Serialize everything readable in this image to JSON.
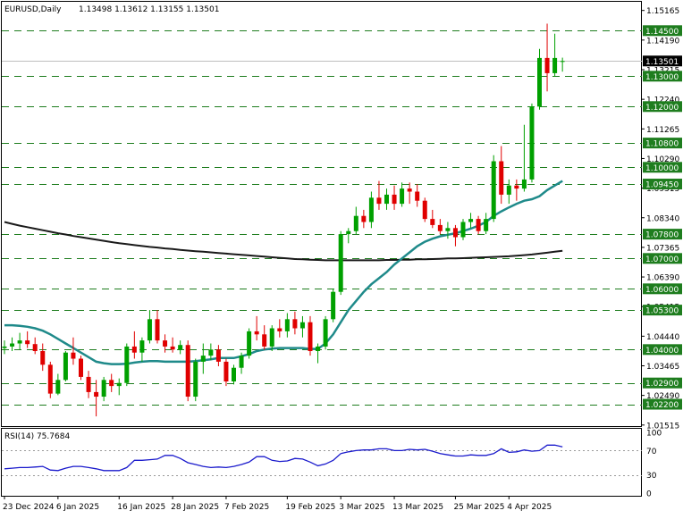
{
  "chart_data": {
    "type": "candlestick",
    "symbol_header": "EURUSD,Daily",
    "ohlc_header": "1.13498 1.13612 1.13155 1.13501",
    "y_range": [
      1.0148,
      1.1545
    ],
    "price_ticks": [
      "1.15165",
      "1.14190",
      "1.13215",
      "1.12240",
      "1.11265",
      "1.10290",
      "1.09315",
      "1.08340",
      "1.07365",
      "1.06390",
      "1.05415",
      "1.04440",
      "1.03465",
      "1.02490",
      "1.01515"
    ],
    "levels": [
      {
        "label": "1.14500",
        "value": 1.145
      },
      {
        "label": "1.13000",
        "value": 1.13
      },
      {
        "label": "1.12000",
        "value": 1.12
      },
      {
        "label": "1.10800",
        "value": 1.108
      },
      {
        "label": "1.10000",
        "value": 1.1
      },
      {
        "label": "1.09450",
        "value": 1.0945
      },
      {
        "label": "1.07800",
        "value": 1.078
      },
      {
        "label": "1.07000",
        "value": 1.07
      },
      {
        "label": "1.06000",
        "value": 1.06
      },
      {
        "label": "1.05300",
        "value": 1.053
      },
      {
        "label": "1.04000",
        "value": 1.04
      },
      {
        "label": "1.02900",
        "value": 1.029
      },
      {
        "label": "1.02200",
        "value": 1.022
      }
    ],
    "current_price": {
      "label": "1.13501",
      "value": 1.13501
    },
    "x_labels": [
      "23 Dec 2024",
      "6 Jan 2025",
      "16 Jan 2025",
      "28 Jan 2025",
      "7 Feb 2025",
      "19 Feb 2025",
      "3 Mar 2025",
      "13 Mar 2025",
      "25 Mar 2025",
      "4 Apr 2025"
    ],
    "candles": [
      [
        1.0405,
        1.043,
        1.0385,
        1.041
      ],
      [
        1.041,
        1.044,
        1.0395,
        1.042
      ],
      [
        1.042,
        1.0455,
        1.04,
        1.043
      ],
      [
        1.043,
        1.046,
        1.0405,
        1.0418
      ],
      [
        1.0418,
        1.044,
        1.0385,
        1.0395
      ],
      [
        1.0395,
        1.042,
        1.033,
        1.035
      ],
      [
        1.035,
        1.036,
        1.024,
        1.0255
      ],
      [
        1.0255,
        1.032,
        1.025,
        1.03
      ],
      [
        1.03,
        1.0395,
        1.0295,
        1.039
      ],
      [
        1.039,
        1.044,
        1.035,
        1.037
      ],
      [
        1.037,
        1.038,
        1.03,
        1.031
      ],
      [
        1.031,
        1.033,
        1.024,
        1.026
      ],
      [
        1.026,
        1.03,
        1.018,
        1.0245
      ],
      [
        1.0245,
        1.031,
        1.023,
        1.03
      ],
      [
        1.03,
        1.032,
        1.026,
        1.028
      ],
      [
        1.028,
        1.0305,
        1.025,
        1.029
      ],
      [
        1.029,
        1.042,
        1.028,
        1.041
      ],
      [
        1.041,
        1.046,
        1.037,
        1.039
      ],
      [
        1.039,
        1.044,
        1.036,
        1.043
      ],
      [
        1.043,
        1.053,
        1.042,
        1.05
      ],
      [
        1.05,
        1.053,
        1.042,
        1.043
      ],
      [
        1.043,
        1.045,
        1.039,
        1.041
      ],
      [
        1.041,
        1.044,
        1.039,
        1.04
      ],
      [
        1.04,
        1.043,
        1.0385,
        1.0415
      ],
      [
        1.0415,
        1.043,
        1.023,
        1.0245
      ],
      [
        1.0245,
        1.037,
        1.023,
        1.036
      ],
      [
        1.036,
        1.042,
        1.032,
        1.038
      ],
      [
        1.038,
        1.042,
        1.0365,
        1.04
      ],
      [
        1.04,
        1.0415,
        1.0345,
        1.036
      ],
      [
        1.036,
        1.037,
        1.028,
        1.0295
      ],
      [
        1.0295,
        1.035,
        1.0285,
        1.034
      ],
      [
        1.034,
        1.039,
        1.032,
        1.038
      ],
      [
        1.038,
        1.047,
        1.037,
        1.046
      ],
      [
        1.046,
        1.051,
        1.043,
        1.045
      ],
      [
        1.045,
        1.048,
        1.04,
        1.041
      ],
      [
        1.041,
        1.048,
        1.0395,
        1.047
      ],
      [
        1.047,
        1.05,
        1.044,
        1.046
      ],
      [
        1.046,
        1.052,
        1.044,
        1.05
      ],
      [
        1.05,
        1.0525,
        1.045,
        1.047
      ],
      [
        1.047,
        1.051,
        1.044,
        1.049
      ],
      [
        1.049,
        1.051,
        1.038,
        1.0395
      ],
      [
        1.0395,
        1.042,
        1.0355,
        1.041
      ],
      [
        1.041,
        1.051,
        1.04,
        1.05
      ],
      [
        1.05,
        1.06,
        1.049,
        1.059
      ],
      [
        1.059,
        1.079,
        1.058,
        1.078
      ],
      [
        1.078,
        1.08,
        1.075,
        1.079
      ],
      [
        1.079,
        1.087,
        1.078,
        1.084
      ],
      [
        1.084,
        1.086,
        1.08,
        1.082
      ],
      [
        1.082,
        1.092,
        1.08,
        1.09
      ],
      [
        1.09,
        1.0955,
        1.086,
        1.088
      ],
      [
        1.088,
        1.093,
        1.086,
        1.091
      ],
      [
        1.091,
        1.094,
        1.086,
        1.088
      ],
      [
        1.088,
        1.095,
        1.087,
        1.093
      ],
      [
        1.093,
        1.095,
        1.088,
        1.092
      ],
      [
        1.092,
        1.0945,
        1.087,
        1.089
      ],
      [
        1.089,
        1.09,
        1.082,
        1.083
      ],
      [
        1.083,
        1.086,
        1.08,
        1.081
      ],
      [
        1.081,
        1.083,
        1.078,
        1.079
      ],
      [
        1.079,
        1.082,
        1.0765,
        1.08
      ],
      [
        1.08,
        1.081,
        1.074,
        1.077
      ],
      [
        1.077,
        1.083,
        1.076,
        1.082
      ],
      [
        1.082,
        1.085,
        1.08,
        1.083
      ],
      [
        1.083,
        1.084,
        1.078,
        1.079
      ],
      [
        1.079,
        1.085,
        1.078,
        1.083
      ],
      [
        1.083,
        1.104,
        1.082,
        1.102
      ],
      [
        1.102,
        1.107,
        1.088,
        1.091
      ],
      [
        1.091,
        1.096,
        1.088,
        1.094
      ],
      [
        1.094,
        1.096,
        1.089,
        1.093
      ],
      [
        1.093,
        1.114,
        1.092,
        1.096
      ],
      [
        1.096,
        1.121,
        1.095,
        1.12
      ],
      [
        1.12,
        1.139,
        1.119,
        1.136
      ],
      [
        1.136,
        1.1473,
        1.125,
        1.131
      ],
      [
        1.131,
        1.144,
        1.13,
        1.136
      ],
      [
        1.135,
        1.1361,
        1.1315,
        1.135
      ]
    ],
    "ma_fast": [
      1.048,
      1.048,
      1.0478,
      1.0475,
      1.047,
      1.0462,
      1.045,
      1.0435,
      1.042,
      1.0405,
      1.039,
      1.0375,
      1.036,
      1.0355,
      1.0352,
      1.0352,
      1.0353,
      1.0357,
      1.036,
      1.0362,
      1.0362,
      1.036,
      1.036,
      1.036,
      1.036,
      1.0362,
      1.0365,
      1.0368,
      1.0372,
      1.0372,
      1.0372,
      1.0378,
      1.0385,
      1.0395,
      1.04,
      1.0403,
      1.0405,
      1.0405,
      1.0405,
      1.0405,
      1.0402,
      1.0402,
      1.042,
      1.045,
      1.049,
      1.053,
      1.056,
      1.059,
      1.0615,
      1.0635,
      1.0655,
      1.068,
      1.07,
      1.072,
      1.074,
      1.0755,
      1.0765,
      1.0773,
      1.0778,
      1.0783,
      1.079,
      1.0798,
      1.0808,
      1.082,
      1.084,
      1.0855,
      1.0868,
      1.088,
      1.089,
      1.0895,
      1.0905,
      1.0925,
      1.094,
      1.0955
    ],
    "ma_slow": [
      1.082,
      1.0814,
      1.0808,
      1.0803,
      1.0798,
      1.0793,
      1.0788,
      1.0783,
      1.0779,
      1.0774,
      1.077,
      1.0766,
      1.0762,
      1.0758,
      1.0754,
      1.075,
      1.0747,
      1.0744,
      1.0741,
      1.0738,
      1.0736,
      1.0733,
      1.0731,
      1.0728,
      1.0726,
      1.0724,
      1.0722,
      1.072,
      1.0718,
      1.0716,
      1.0714,
      1.0712,
      1.071,
      1.0708,
      1.0706,
      1.0704,
      1.0702,
      1.07,
      1.0698,
      1.0697,
      1.0696,
      1.0695,
      1.0694,
      1.0694,
      1.0694,
      1.0694,
      1.0694,
      1.0694,
      1.0694,
      1.0694,
      1.0695,
      1.0695,
      1.0696,
      1.0696,
      1.0697,
      1.0697,
      1.0698,
      1.0699,
      1.07,
      1.07,
      1.0701,
      1.0702,
      1.0703,
      1.0704,
      1.0705,
      1.0706,
      1.0707,
      1.0709,
      1.0711,
      1.0713,
      1.0716,
      1.0719,
      1.0722,
      1.0725
    ],
    "rsi": {
      "label": "RSI(14) 75.7684",
      "ticks": [
        "100",
        "70",
        "30",
        "0"
      ],
      "levels": [
        70,
        30
      ],
      "values": [
        40,
        41,
        42,
        42,
        43,
        44,
        38,
        37,
        41,
        44,
        44,
        42,
        40,
        37,
        37,
        37,
        42,
        54,
        54,
        55,
        56,
        62,
        62,
        57,
        50,
        47,
        44,
        42,
        43,
        42,
        44,
        47,
        51,
        60,
        60,
        54,
        52,
        53,
        57,
        56,
        51,
        45,
        48,
        54,
        65,
        68,
        70,
        71,
        71,
        73,
        73,
        70,
        70,
        72,
        71,
        72,
        69,
        65,
        63,
        61,
        61,
        63,
        62,
        62,
        65,
        73,
        67,
        68,
        71,
        69,
        70,
        79,
        79,
        76
      ]
    }
  }
}
